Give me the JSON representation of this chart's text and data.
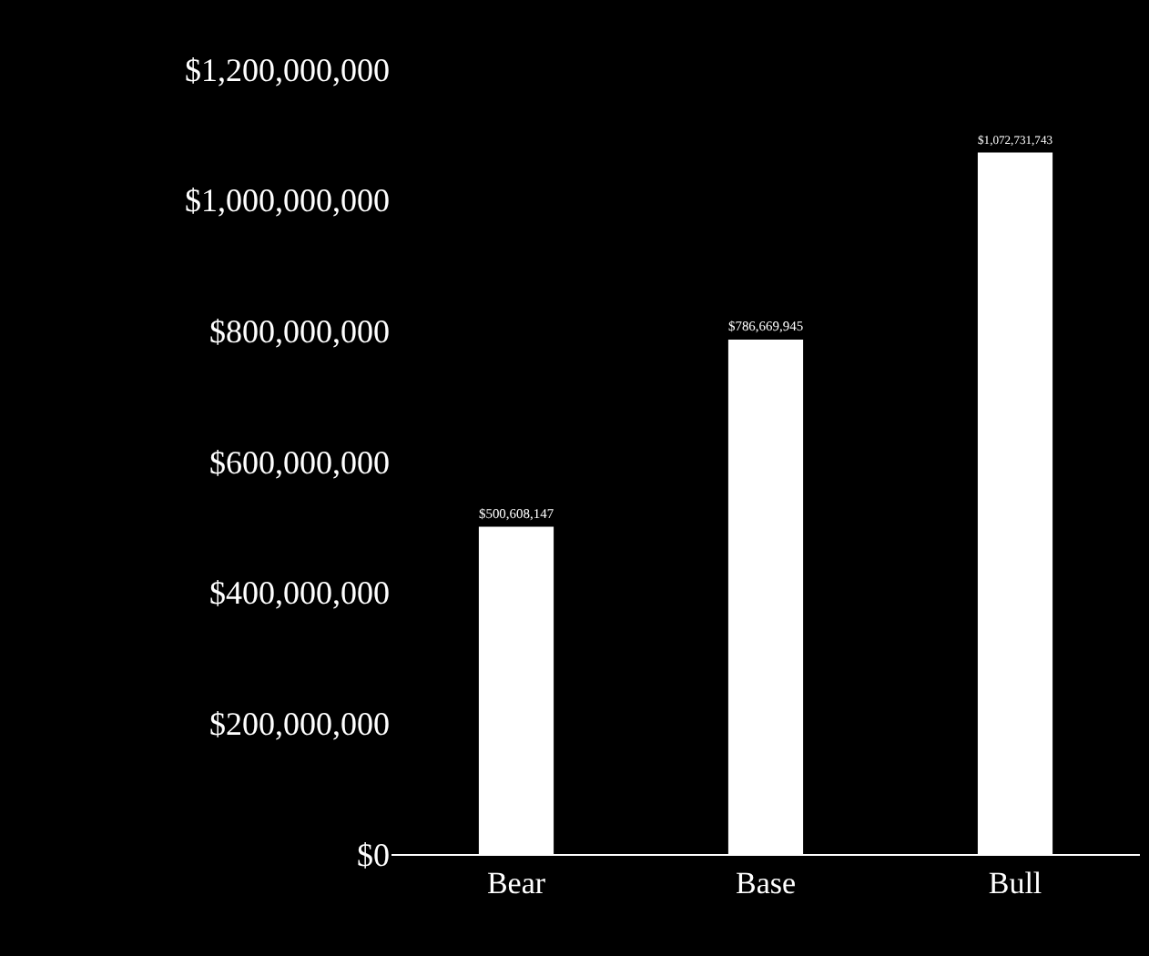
{
  "chart_data": {
    "type": "bar",
    "categories": [
      "Bear",
      "Base",
      "Bull"
    ],
    "values": [
      500608147,
      786669945,
      1072731743
    ],
    "value_labels": [
      "$500,608,147",
      "$786,669,945",
      "$1,072,731,743"
    ],
    "color": "#ffffff",
    "ylim": [
      0,
      1200000000
    ],
    "yticks": [
      {
        "value": 0,
        "label": "$0"
      },
      {
        "value": 200000000,
        "label": "$200,000,000"
      },
      {
        "value": 400000000,
        "label": "$400,000,000"
      },
      {
        "value": 600000000,
        "label": "$600,000,000"
      },
      {
        "value": 800000000,
        "label": "$800,000,000"
      },
      {
        "value": 1000000000,
        "label": "$1,000,000,000"
      },
      {
        "value": 1200000000,
        "label": "$1,200,000,000"
      }
    ],
    "grid": false,
    "legend": false
  }
}
